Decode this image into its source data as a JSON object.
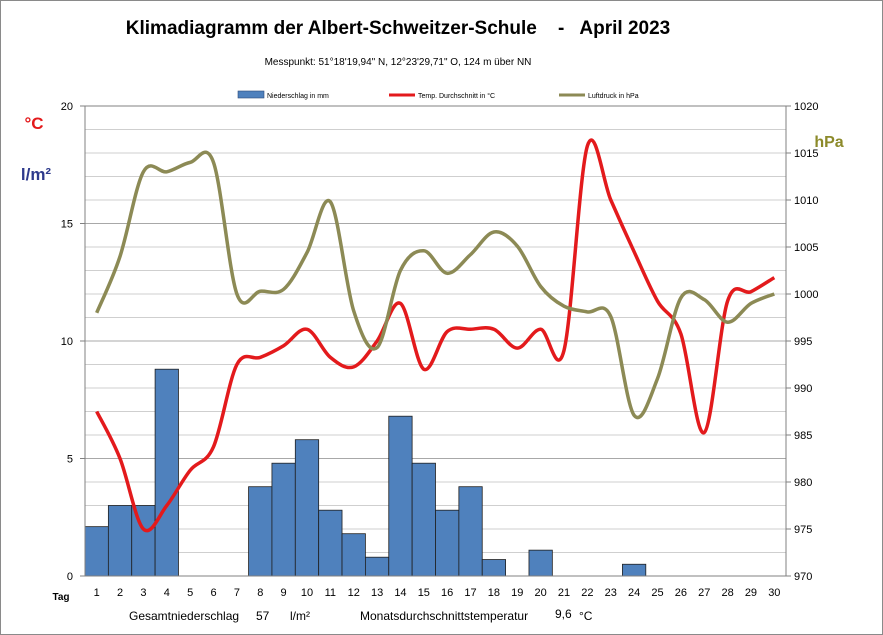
{
  "chart_data": {
    "type": "bar+line",
    "title": "Klimadiagramm der Albert-Schweitzer-Schule    -   April 2023",
    "subtitle": "Messpunkt:  51°18'19,94\" N,  12°23'29,71\" O,  124 m über NN",
    "left_unit_top": "°C",
    "left_unit_bottom": "l/m²",
    "right_unit": "hPa",
    "xlabel": "Tag",
    "x": [
      1,
      2,
      3,
      4,
      5,
      6,
      7,
      8,
      9,
      10,
      11,
      12,
      13,
      14,
      15,
      16,
      17,
      18,
      19,
      20,
      21,
      22,
      23,
      24,
      25,
      26,
      27,
      28,
      29,
      30
    ],
    "y_left_ticks": [
      "0",
      "5",
      "10",
      "15",
      "20"
    ],
    "y_left_range": [
      0,
      20
    ],
    "y_right_ticks": [
      "970",
      "975",
      "980",
      "985",
      "990",
      "995",
      "1000",
      "1005",
      "1010",
      "1015",
      "1020"
    ],
    "y_right_range": [
      970,
      1020
    ],
    "grid": true,
    "legend_position": "top",
    "series": [
      {
        "name": "Niederschlag in mm",
        "kind": "bar",
        "axis": "left",
        "color": "#4f81bd",
        "values": [
          2.1,
          3.0,
          3.0,
          8.8,
          0,
          0,
          0,
          3.8,
          4.8,
          5.8,
          2.8,
          1.8,
          0.8,
          6.8,
          4.8,
          2.8,
          3.8,
          0.7,
          0,
          1.1,
          0,
          0,
          0,
          0.5,
          0,
          0,
          0,
          0,
          0,
          0
        ]
      },
      {
        "name": "Temp. Durchschnitt in °C",
        "kind": "line",
        "axis": "left",
        "color": "#e31a1c",
        "values": [
          7.0,
          5.0,
          2.0,
          3.0,
          4.5,
          5.5,
          9.0,
          9.3,
          9.8,
          10.5,
          9.3,
          8.9,
          10.0,
          11.6,
          8.8,
          10.4,
          10.5,
          10.5,
          9.7,
          10.5,
          9.6,
          18.3,
          16.0,
          13.8,
          11.7,
          10.3,
          6.1,
          11.7,
          12.1,
          12.7
        ]
      },
      {
        "name": "Luftdruck in hPa",
        "kind": "line",
        "axis": "right",
        "color": "#8c8a55",
        "values": [
          998,
          1004,
          1013,
          1013,
          1014,
          1014,
          1000,
          1000.3,
          1000.5,
          1004.4,
          1009.8,
          998.2,
          994.3,
          1002.5,
          1004.6,
          1002.2,
          1004.2,
          1006.6,
          1005.1,
          1000.8,
          998.7,
          998.1,
          997.6,
          987.1,
          991.0,
          999.6,
          999.4,
          997.0,
          999.0,
          1000.0
        ]
      }
    ]
  },
  "footer": {
    "total_label": "Gesamtniederschlag",
    "total_value": "57",
    "total_unit": "l/m²",
    "mean_label": "Monatsdurchschnittstemperatur",
    "mean_value": "9,6",
    "mean_unit": "°C"
  }
}
